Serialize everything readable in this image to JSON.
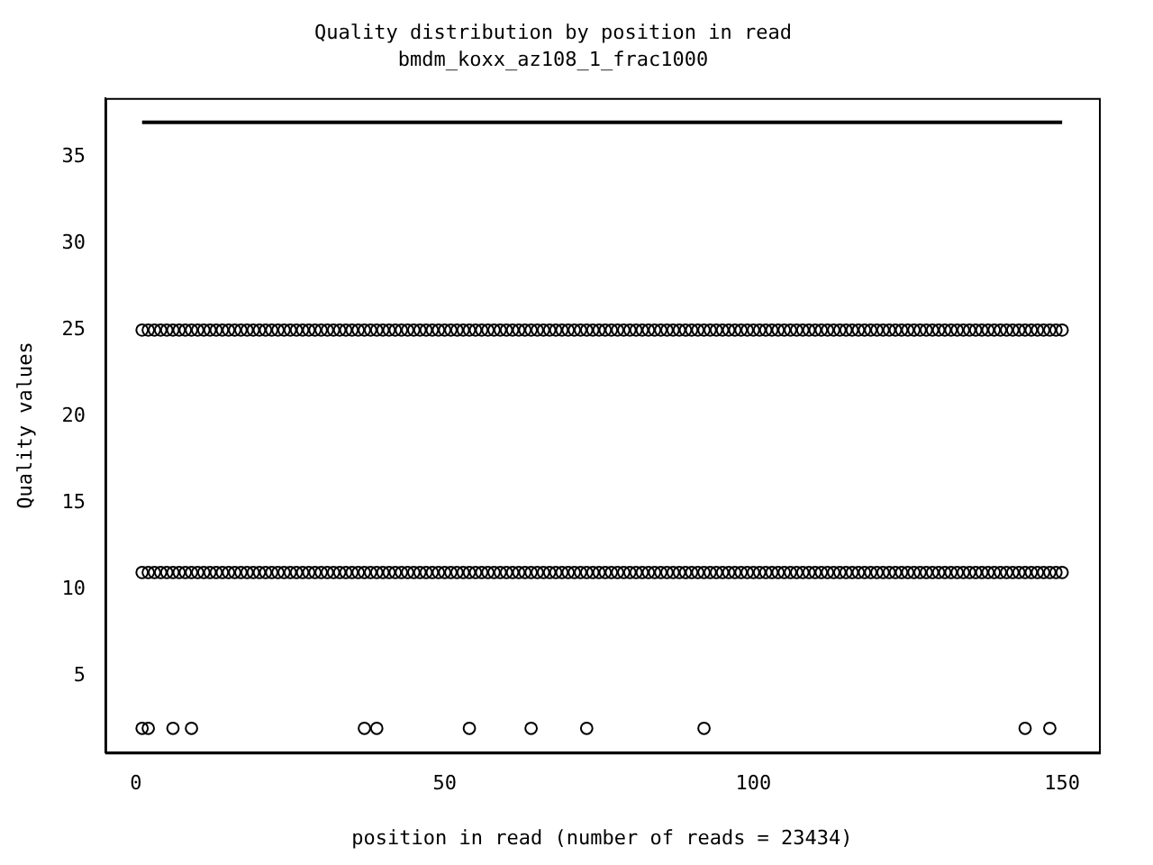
{
  "chart_data": {
    "type": "scatter",
    "title": "Quality distribution by position in read",
    "subtitle": "bmdm_koxx_az108_1_frac1000",
    "xlabel": "position in read (number of reads = 23434)",
    "ylabel": "Quality values",
    "x": [
      1,
      2,
      3,
      4,
      5,
      6,
      7,
      8,
      9,
      10,
      11,
      12,
      13,
      14,
      15,
      16,
      17,
      18,
      19,
      20,
      21,
      22,
      23,
      24,
      25,
      26,
      27,
      28,
      29,
      30,
      31,
      32,
      33,
      34,
      35,
      36,
      37,
      38,
      39,
      40,
      41,
      42,
      43,
      44,
      45,
      46,
      47,
      48,
      49,
      50,
      51,
      52,
      53,
      54,
      55,
      56,
      57,
      58,
      59,
      60,
      61,
      62,
      63,
      64,
      65,
      66,
      67,
      68,
      69,
      70,
      71,
      72,
      73,
      74,
      75,
      76,
      77,
      78,
      79,
      80,
      81,
      82,
      83,
      84,
      85,
      86,
      87,
      88,
      89,
      90,
      91,
      92,
      93,
      94,
      95,
      96,
      97,
      98,
      99,
      100,
      101,
      102,
      103,
      104,
      105,
      106,
      107,
      108,
      109,
      110,
      111,
      112,
      113,
      114,
      115,
      116,
      117,
      118,
      119,
      120,
      121,
      122,
      123,
      124,
      125,
      126,
      127,
      128,
      129,
      130,
      131,
      132,
      133,
      134,
      135,
      136,
      137,
      138,
      139,
      140,
      141,
      142,
      143,
      144,
      145,
      146,
      147,
      148,
      149,
      150
    ],
    "series": [
      {
        "type": "line",
        "color": "#000000",
        "marker": "none",
        "x": [
          1,
          150
        ],
        "values": [
          37,
          37
        ]
      },
      {
        "color": "#000000",
        "values": [
          25,
          25,
          25,
          25,
          25,
          25,
          25,
          25,
          25,
          25,
          25,
          25,
          25,
          25,
          25,
          25,
          25,
          25,
          25,
          25,
          25,
          25,
          25,
          25,
          25,
          25,
          25,
          25,
          25,
          25,
          25,
          25,
          25,
          25,
          25,
          25,
          25,
          25,
          25,
          25,
          25,
          25,
          25,
          25,
          25,
          25,
          25,
          25,
          25,
          25,
          25,
          25,
          25,
          25,
          25,
          25,
          25,
          25,
          25,
          25,
          25,
          25,
          25,
          25,
          25,
          25,
          25,
          25,
          25,
          25,
          25,
          25,
          25,
          25,
          25,
          25,
          25,
          25,
          25,
          25,
          25,
          25,
          25,
          25,
          25,
          25,
          25,
          25,
          25,
          25,
          25,
          25,
          25,
          25,
          25,
          25,
          25,
          25,
          25,
          25,
          25,
          25,
          25,
          25,
          25,
          25,
          25,
          25,
          25,
          25,
          25,
          25,
          25,
          25,
          25,
          25,
          25,
          25,
          25,
          25,
          25,
          25,
          25,
          25,
          25,
          25,
          25,
          25,
          25,
          25,
          25,
          25,
          25,
          25,
          25,
          25,
          25,
          25,
          25,
          25,
          25,
          25,
          25,
          25,
          25,
          25,
          25,
          25,
          25,
          25
        ]
      },
      {
        "color": "#000000",
        "values": [
          11,
          11,
          11,
          11,
          11,
          11,
          11,
          11,
          11,
          11,
          11,
          11,
          11,
          11,
          11,
          11,
          11,
          11,
          11,
          11,
          11,
          11,
          11,
          11,
          11,
          11,
          11,
          11,
          11,
          11,
          11,
          11,
          11,
          11,
          11,
          11,
          11,
          11,
          11,
          11,
          11,
          11,
          11,
          11,
          11,
          11,
          11,
          11,
          11,
          11,
          11,
          11,
          11,
          11,
          11,
          11,
          11,
          11,
          11,
          11,
          11,
          11,
          11,
          11,
          11,
          11,
          11,
          11,
          11,
          11,
          11,
          11,
          11,
          11,
          11,
          11,
          11,
          11,
          11,
          11,
          11,
          11,
          11,
          11,
          11,
          11,
          11,
          11,
          11,
          11,
          11,
          11,
          11,
          11,
          11,
          11,
          11,
          11,
          11,
          11,
          11,
          11,
          11,
          11,
          11,
          11,
          11,
          11,
          11,
          11,
          11,
          11,
          11,
          11,
          11,
          11,
          11,
          11,
          11,
          11,
          11,
          11,
          11,
          11,
          11,
          11,
          11,
          11,
          11,
          11,
          11,
          11,
          11,
          11,
          11,
          11,
          11,
          11,
          11,
          11,
          11,
          11,
          11,
          11,
          11,
          11,
          11,
          11,
          11,
          11
        ]
      },
      {
        "color": "#000000",
        "x": [
          1,
          2,
          6,
          9,
          37,
          39,
          54,
          64,
          73,
          92,
          144,
          148
        ],
        "values": [
          2,
          2,
          2,
          2,
          2,
          2,
          2,
          2,
          2,
          2,
          2,
          2
        ]
      }
    ],
    "marker": "circle",
    "xlim": [
      -4.96,
      155.96
    ],
    "xticks": [
      0,
      50,
      100,
      150
    ],
    "ylim": [
      0.6,
      38.4
    ],
    "yticks": [
      5,
      10,
      15,
      20,
      25,
      30,
      35
    ],
    "grid": false,
    "legend": false
  }
}
